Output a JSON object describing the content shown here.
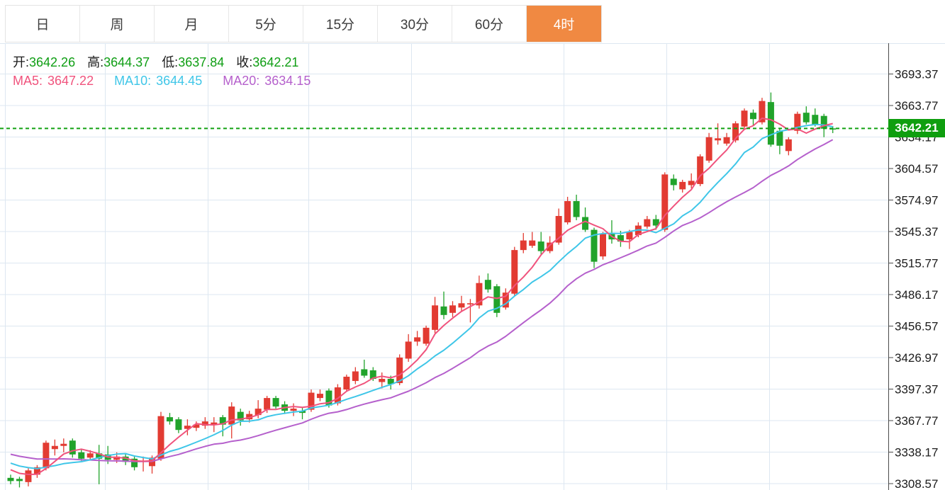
{
  "tabs": {
    "items": [
      "日",
      "周",
      "月",
      "5分",
      "15分",
      "30分",
      "60分",
      "4时"
    ],
    "selected_index": 7,
    "selected_bg": "#f08942"
  },
  "ohlc": {
    "open_label": "开:",
    "open_value": "3642.26",
    "high_label": "高:",
    "high_value": "3644.37",
    "low_label": "低:",
    "low_value": "3637.84",
    "close_label": "收:",
    "close_value": "3642.21"
  },
  "ma_legend": {
    "ma5_label": "MA5:",
    "ma5_value": "3647.22",
    "ma10_label": "MA10:",
    "ma10_value": "3644.45",
    "ma20_label": "MA20:",
    "ma20_value": "3634.15"
  },
  "price_tag": {
    "text": "3642.21"
  },
  "colors": {
    "up": "#e23b32",
    "down": "#21a32b",
    "ma5": "#f0537d",
    "ma10": "#3fc6e8",
    "ma20": "#b560cc",
    "value_green": "#0f9e14",
    "label_dark": "#1b1b1b",
    "current_line": "#12a112",
    "tag_bg": "#0f9e0f",
    "grid": "#dde7f1",
    "axis": "#4a4a4a",
    "axis_label": "#1c1c1c",
    "tab_selected_bg": "#f08942"
  },
  "chart_data": {
    "type": "candlestick",
    "title": "",
    "legend_entries": [
      "MA5",
      "MA10",
      "MA20"
    ],
    "grid": true,
    "last_price": 3642.21,
    "ylim": [
      3308.57,
      3693.37
    ],
    "y_tick_step": 29.6,
    "y_tick_values": [
      3693.37,
      3663.77,
      3634.17,
      3604.57,
      3574.97,
      3545.37,
      3515.77,
      3486.17,
      3456.57,
      3426.97,
      3397.37,
      3367.77,
      3338.17,
      3308.57
    ],
    "ma_periods": [
      5,
      10,
      20
    ],
    "ma_seed": [
      3352,
      3350,
      3348,
      3347,
      3346,
      3345,
      3344,
      3343,
      3342,
      3341,
      3340,
      3338,
      3336,
      3334,
      3332,
      3330,
      3328,
      3326,
      3323,
      3320
    ],
    "candles_format": [
      "open",
      "high",
      "low",
      "close"
    ],
    "candles": [
      [
        3314,
        3317,
        3308,
        3311
      ],
      [
        3313,
        3315,
        3305,
        3311
      ],
      [
        3310,
        3323,
        3306,
        3321
      ],
      [
        3317,
        3326,
        3314,
        3324
      ],
      [
        3323,
        3349,
        3321,
        3347
      ],
      [
        3341,
        3350,
        3335,
        3344
      ],
      [
        3344,
        3351,
        3338,
        3346
      ],
      [
        3349,
        3351,
        3333,
        3336
      ],
      [
        3338,
        3341,
        3330,
        3332
      ],
      [
        3333,
        3340,
        3331,
        3337
      ],
      [
        3337,
        3345,
        3308,
        3332
      ],
      [
        3336,
        3344,
        3327,
        3331
      ],
      [
        3331,
        3338,
        3328,
        3334
      ],
      [
        3334,
        3337,
        3326,
        3329
      ],
      [
        3332,
        3335,
        3321,
        3324
      ],
      [
        3329,
        3334,
        3320,
        3330
      ],
      [
        3325,
        3335,
        3318,
        3333
      ],
      [
        3332,
        3376,
        3330,
        3372
      ],
      [
        3371,
        3375,
        3364,
        3367
      ],
      [
        3369,
        3371,
        3356,
        3359
      ],
      [
        3360,
        3369,
        3354,
        3363
      ],
      [
        3361,
        3367,
        3358,
        3364
      ],
      [
        3363,
        3371,
        3360,
        3367
      ],
      [
        3364,
        3371,
        3357,
        3366
      ],
      [
        3371,
        3373,
        3353,
        3364
      ],
      [
        3364,
        3385,
        3351,
        3381
      ],
      [
        3376,
        3379,
        3363,
        3368
      ],
      [
        3369,
        3377,
        3366,
        3374
      ],
      [
        3373,
        3387,
        3370,
        3379
      ],
      [
        3378,
        3391,
        3375,
        3389
      ],
      [
        3389,
        3391,
        3379,
        3381
      ],
      [
        3383,
        3386,
        3374,
        3377
      ],
      [
        3377,
        3384,
        3372,
        3379
      ],
      [
        3377,
        3380,
        3369,
        3375
      ],
      [
        3378,
        3397,
        3376,
        3394
      ],
      [
        3389,
        3397,
        3386,
        3393
      ],
      [
        3396,
        3398,
        3380,
        3382
      ],
      [
        3384,
        3402,
        3382,
        3399
      ],
      [
        3397,
        3411,
        3395,
        3409
      ],
      [
        3405,
        3418,
        3402,
        3414
      ],
      [
        3416,
        3425,
        3408,
        3410
      ],
      [
        3415,
        3418,
        3405,
        3407
      ],
      [
        3404,
        3413,
        3398,
        3407
      ],
      [
        3407,
        3410,
        3397,
        3402
      ],
      [
        3403,
        3430,
        3401,
        3427
      ],
      [
        3426,
        3449,
        3423,
        3442
      ],
      [
        3442,
        3452,
        3438,
        3446
      ],
      [
        3440,
        3457,
        3438,
        3455
      ],
      [
        3453,
        3484,
        3450,
        3476
      ],
      [
        3475,
        3489,
        3463,
        3467
      ],
      [
        3469,
        3480,
        3465,
        3476
      ],
      [
        3474,
        3485,
        3470,
        3478
      ],
      [
        3477,
        3482,
        3460,
        3478
      ],
      [
        3476,
        3504,
        3473,
        3497
      ],
      [
        3500,
        3506,
        3488,
        3491
      ],
      [
        3494,
        3496,
        3465,
        3469
      ],
      [
        3474,
        3492,
        3472,
        3488
      ],
      [
        3487,
        3531,
        3485,
        3528
      ],
      [
        3528,
        3544,
        3525,
        3537
      ],
      [
        3532,
        3545,
        3530,
        3537
      ],
      [
        3536,
        3545,
        3524,
        3527
      ],
      [
        3527,
        3541,
        3525,
        3535
      ],
      [
        3535,
        3567,
        3533,
        3560
      ],
      [
        3554,
        3578,
        3552,
        3574
      ],
      [
        3574,
        3580,
        3556,
        3559
      ],
      [
        3559,
        3568,
        3545,
        3547
      ],
      [
        3547,
        3549,
        3511,
        3517
      ],
      [
        3522,
        3545,
        3519,
        3543
      ],
      [
        3543,
        3556,
        3534,
        3538
      ],
      [
        3542,
        3546,
        3531,
        3536
      ],
      [
        3538,
        3547,
        3529,
        3545
      ],
      [
        3542,
        3554,
        3540,
        3551
      ],
      [
        3550,
        3560,
        3548,
        3557
      ],
      [
        3557,
        3561,
        3547,
        3551
      ],
      [
        3547,
        3601,
        3545,
        3599
      ],
      [
        3595,
        3599,
        3584,
        3589
      ],
      [
        3585,
        3594,
        3582,
        3592
      ],
      [
        3589,
        3600,
        3586,
        3593
      ],
      [
        3590,
        3618,
        3588,
        3616
      ],
      [
        3612,
        3638,
        3610,
        3634
      ],
      [
        3631,
        3647,
        3627,
        3633
      ],
      [
        3628,
        3638,
        3626,
        3634
      ],
      [
        3631,
        3649,
        3629,
        3647
      ],
      [
        3644,
        3661,
        3642,
        3659
      ],
      [
        3657,
        3660,
        3645,
        3651
      ],
      [
        3648,
        3671,
        3646,
        3668
      ],
      [
        3667,
        3676,
        3625,
        3627
      ],
      [
        3640,
        3642,
        3618,
        3626
      ],
      [
        3621,
        3634,
        3617,
        3632
      ],
      [
        3640,
        3658,
        3637,
        3656
      ],
      [
        3657,
        3663,
        3646,
        3648
      ],
      [
        3655,
        3661,
        3644,
        3646
      ],
      [
        3654,
        3656,
        3634,
        3642
      ],
      [
        3642.26,
        3644.37,
        3637.84,
        3642.21
      ]
    ]
  }
}
